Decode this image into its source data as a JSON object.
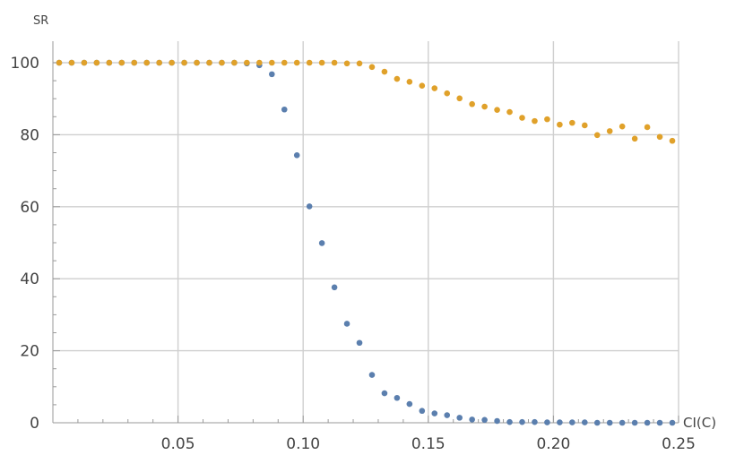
{
  "chart_data": {
    "type": "scatter",
    "xlabel": "CI(C)",
    "ylabel": "SR",
    "xlim": [
      0,
      0.25
    ],
    "ylim": [
      0,
      100
    ],
    "x_ticks": [
      "0.05",
      "0.10",
      "0.15",
      "0.20",
      "0.25"
    ],
    "y_ticks": [
      "0",
      "20",
      "40",
      "60",
      "80",
      "100"
    ],
    "grid": true,
    "series": [
      {
        "color": "#5b7fae",
        "points": [
          [
            0.0025,
            100
          ],
          [
            0.0075,
            100
          ],
          [
            0.0125,
            100
          ],
          [
            0.0175,
            100
          ],
          [
            0.0225,
            100
          ],
          [
            0.0275,
            100
          ],
          [
            0.0325,
            100
          ],
          [
            0.0375,
            100
          ],
          [
            0.0425,
            100
          ],
          [
            0.0475,
            100
          ],
          [
            0.0525,
            100
          ],
          [
            0.0575,
            100
          ],
          [
            0.0625,
            100
          ],
          [
            0.0675,
            100
          ],
          [
            0.0725,
            100
          ],
          [
            0.0775,
            99.8
          ],
          [
            0.0825,
            99.3
          ],
          [
            0.0875,
            96.8
          ],
          [
            0.0925,
            87
          ],
          [
            0.0975,
            74.3
          ],
          [
            0.1025,
            60.1
          ],
          [
            0.1075,
            49.9
          ],
          [
            0.1125,
            37.6
          ],
          [
            0.1175,
            27.5
          ],
          [
            0.1225,
            22.2
          ],
          [
            0.1275,
            13.3
          ],
          [
            0.1325,
            8.2
          ],
          [
            0.1375,
            6.9
          ],
          [
            0.1425,
            5.2
          ],
          [
            0.1475,
            3.3
          ],
          [
            0.1525,
            2.6
          ],
          [
            0.1575,
            2.1
          ],
          [
            0.1625,
            1.4
          ],
          [
            0.1675,
            0.9
          ],
          [
            0.1725,
            0.8
          ],
          [
            0.1775,
            0.5
          ],
          [
            0.1825,
            0.2
          ],
          [
            0.1875,
            0.2
          ],
          [
            0.1925,
            0.2
          ],
          [
            0.1975,
            0.1
          ],
          [
            0.2025,
            0.1
          ],
          [
            0.2075,
            0.1
          ],
          [
            0.2125,
            0.1
          ],
          [
            0.2175,
            0
          ],
          [
            0.2225,
            0
          ],
          [
            0.2275,
            0
          ],
          [
            0.2325,
            0
          ],
          [
            0.2375,
            0
          ],
          [
            0.2425,
            0
          ],
          [
            0.2475,
            0
          ]
        ]
      },
      {
        "color": "#e0a12a",
        "points": [
          [
            0.0025,
            100
          ],
          [
            0.0075,
            100
          ],
          [
            0.0125,
            100
          ],
          [
            0.0175,
            100
          ],
          [
            0.0225,
            100
          ],
          [
            0.0275,
            100
          ],
          [
            0.0325,
            100
          ],
          [
            0.0375,
            100
          ],
          [
            0.0425,
            100
          ],
          [
            0.0475,
            100
          ],
          [
            0.0525,
            100
          ],
          [
            0.0575,
            100
          ],
          [
            0.0625,
            100
          ],
          [
            0.0675,
            100
          ],
          [
            0.0725,
            100
          ],
          [
            0.0775,
            100
          ],
          [
            0.0825,
            100
          ],
          [
            0.0875,
            100
          ],
          [
            0.0925,
            100
          ],
          [
            0.0975,
            100
          ],
          [
            0.1025,
            100
          ],
          [
            0.1075,
            100
          ],
          [
            0.1125,
            100
          ],
          [
            0.1175,
            99.8
          ],
          [
            0.1225,
            99.8
          ],
          [
            0.1275,
            98.8
          ],
          [
            0.1325,
            97.5
          ],
          [
            0.1375,
            95.5
          ],
          [
            0.1425,
            94.7
          ],
          [
            0.1475,
            93.6
          ],
          [
            0.1525,
            92.9
          ],
          [
            0.1575,
            91.5
          ],
          [
            0.1625,
            90.1
          ],
          [
            0.1675,
            88.5
          ],
          [
            0.1725,
            87.8
          ],
          [
            0.1775,
            86.9
          ],
          [
            0.1825,
            86.3
          ],
          [
            0.1875,
            84.7
          ],
          [
            0.1925,
            83.8
          ],
          [
            0.1975,
            84.3
          ],
          [
            0.2025,
            82.8
          ],
          [
            0.2075,
            83.3
          ],
          [
            0.2125,
            82.6
          ],
          [
            0.2175,
            79.9
          ],
          [
            0.2225,
            81.0
          ],
          [
            0.2275,
            82.3
          ],
          [
            0.2325,
            78.9
          ],
          [
            0.2375,
            82.1
          ],
          [
            0.2425,
            79.4
          ],
          [
            0.2475,
            78.3
          ]
        ]
      }
    ]
  }
}
